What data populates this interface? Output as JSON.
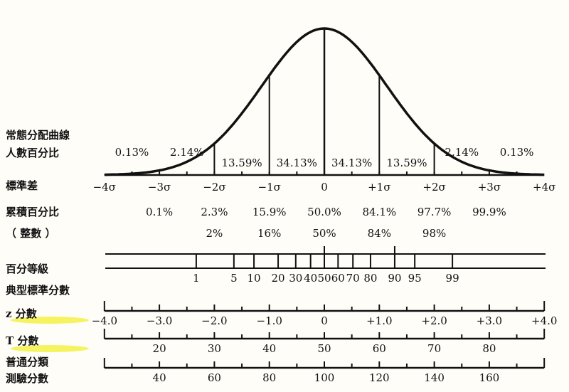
{
  "row_labels": {
    "curve_line1": "常態分配曲線",
    "curve_line2": "人數百分比",
    "std_dev": "標準差",
    "cumulative": "累積百分比",
    "rounded": "（ 整數 ）",
    "percentile": "百分等級",
    "typical_scores": "典型標準分數",
    "z_score": "z 分數",
    "t_score": "T 分數",
    "agct_line1": "普通分類",
    "agct_line2": "測驗分數"
  },
  "highlight_color": "#f4f03a",
  "area_percentages": [
    {
      "z": -3.5,
      "label": "0.13%"
    },
    {
      "z": -2.5,
      "label": "2.14%"
    },
    {
      "z": -1.5,
      "label": "13.59%"
    },
    {
      "z": -0.5,
      "label": "34.13%"
    },
    {
      "z": 0.5,
      "label": "34.13%"
    },
    {
      "z": 1.5,
      "label": "13.59%"
    },
    {
      "z": 2.5,
      "label": "2.14%"
    },
    {
      "z": 3.5,
      "label": "0.13%"
    }
  ],
  "sigma_labels": [
    {
      "z": -4,
      "label": "−4σ"
    },
    {
      "z": -3,
      "label": "−3σ"
    },
    {
      "z": -2,
      "label": "−2σ"
    },
    {
      "z": -1,
      "label": "−1σ"
    },
    {
      "z": 0,
      "label": "0"
    },
    {
      "z": 1,
      "label": "+1σ"
    },
    {
      "z": 2,
      "label": "+2σ"
    },
    {
      "z": 3,
      "label": "+3σ"
    },
    {
      "z": 4,
      "label": "+4σ"
    }
  ],
  "cumulative": [
    {
      "z": -3,
      "label": "0.1%"
    },
    {
      "z": -2,
      "label": "2.3%"
    },
    {
      "z": -1,
      "label": "15.9%"
    },
    {
      "z": 0,
      "label": "50.0%"
    },
    {
      "z": 1,
      "label": "84.1%"
    },
    {
      "z": 2,
      "label": "97.7%"
    },
    {
      "z": 3,
      "label": "99.9%"
    }
  ],
  "rounded": [
    {
      "z": -2,
      "label": "2%"
    },
    {
      "z": -1,
      "label": "16%"
    },
    {
      "z": 0,
      "label": "50%"
    },
    {
      "z": 1,
      "label": "84%"
    },
    {
      "z": 2,
      "label": "98%"
    }
  ],
  "percentile_ranks": [
    {
      "z": -2.33,
      "label": "1"
    },
    {
      "z": -1.645,
      "label": "5"
    },
    {
      "z": -1.28,
      "label": "10"
    },
    {
      "z": -0.84,
      "label": "20"
    },
    {
      "z": -0.52,
      "label": "30"
    },
    {
      "z": -0.25,
      "label": "40"
    },
    {
      "z": 0,
      "label": "50"
    },
    {
      "z": 0.25,
      "label": "60"
    },
    {
      "z": 0.52,
      "label": "70"
    },
    {
      "z": 0.84,
      "label": "80"
    },
    {
      "z": 1.28,
      "label": "90"
    },
    {
      "z": 1.645,
      "label": "95"
    },
    {
      "z": 2.33,
      "label": "99"
    }
  ],
  "z_scores": [
    {
      "z": -4,
      "label": "−4.0"
    },
    {
      "z": -3,
      "label": "−3.0"
    },
    {
      "z": -2,
      "label": "−2.0"
    },
    {
      "z": -1,
      "label": "−1.0"
    },
    {
      "z": 0,
      "label": "0"
    },
    {
      "z": 1,
      "label": "+1.0"
    },
    {
      "z": 2,
      "label": "+2.0"
    },
    {
      "z": 3,
      "label": "+3.0"
    },
    {
      "z": 4,
      "label": "+4.0"
    }
  ],
  "t_scores": [
    {
      "z": -3,
      "label": "20"
    },
    {
      "z": -2,
      "label": "30"
    },
    {
      "z": -1,
      "label": "40"
    },
    {
      "z": 0,
      "label": "50"
    },
    {
      "z": 1,
      "label": "60"
    },
    {
      "z": 2,
      "label": "70"
    },
    {
      "z": 3,
      "label": "80"
    }
  ],
  "agct_scores": [
    {
      "z": -3,
      "label": "40"
    },
    {
      "z": -2,
      "label": "60"
    },
    {
      "z": -1,
      "label": "80"
    },
    {
      "z": 0,
      "label": "100"
    },
    {
      "z": 1,
      "label": "120"
    },
    {
      "z": 2,
      "label": "140"
    },
    {
      "z": 3,
      "label": "160"
    }
  ]
}
